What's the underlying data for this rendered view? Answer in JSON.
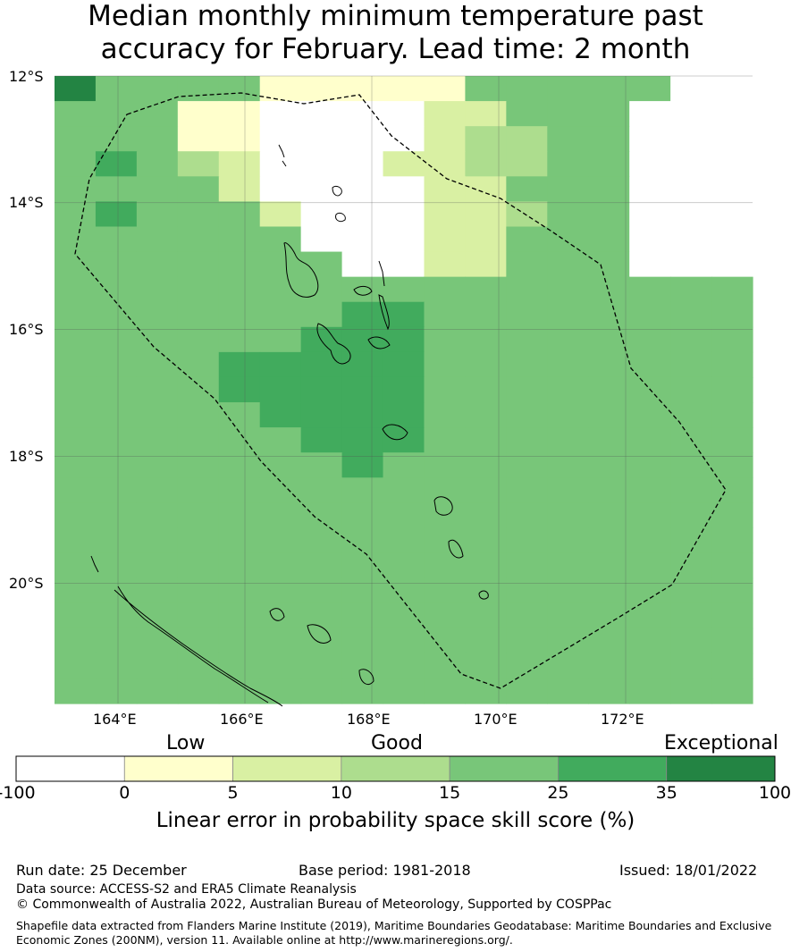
{
  "title": {
    "line1": "Median monthly minimum temperature past",
    "line2": "accuracy for February. Lead time: 2 month"
  },
  "map": {
    "lat_labels": [
      "12°S",
      "14°S",
      "16°S",
      "18°S",
      "20°S"
    ],
    "lon_labels": [
      "164°E",
      "166°E",
      "168°E",
      "170°E",
      "172°E"
    ],
    "lon_range": [
      163.0,
      174.0
    ],
    "lat_range": [
      -21.9,
      -12.0
    ],
    "boundary_style": "dashed",
    "grid": true,
    "skill_grid_rows": [
      "64444111114444400",
      "44411000022444000",
      "44411000023344000",
      "45432000223344000",
      "44442000022444000",
      "45444200022344000",
      "44444400022444000",
      "44444440022444000",
      "44444444444444444",
      "44444445544444444",
      "44444455544444444",
      "44445555544444444",
      "44445555544444444",
      "44444555544444444",
      "44444455544444444",
      "44444445444444444",
      "44444444444444444",
      "44444444444444444",
      "44444444444444444",
      "44444444444444444",
      "44444444444444444",
      "44444444444444444",
      "44444444444444444",
      "44444444444444444",
      "44444444444444444"
    ]
  },
  "colorbar": {
    "categories": [
      {
        "text": "Low"
      },
      {
        "text": "Good"
      },
      {
        "text": "Exceptional"
      }
    ],
    "bins": [
      {
        "color": "#ffffff"
      },
      {
        "color": "#ffffcc"
      },
      {
        "color": "#d9f0a3"
      },
      {
        "color": "#addd8e"
      },
      {
        "color": "#78c679"
      },
      {
        "color": "#41ab5d"
      },
      {
        "color": "#238443"
      }
    ],
    "ticks": [
      "-100",
      "0",
      "5",
      "10",
      "15",
      "25",
      "35",
      "100"
    ],
    "label": "Linear error in probability space skill score (%)"
  },
  "footer": {
    "run_date": "Run date: 25 December",
    "base_period": "Base period: 1981-2018",
    "issued": "Issued: 18/01/2022",
    "data_source": "Data source: ACCESS-S2 and ERA5 Climate Reanalysis",
    "copyright": "© Commonwealth of Australia 2022, Australian Bureau of Meteorology, Supported by COSPPac",
    "shapefile_line1": "Shapefile data extracted from Flanders Marine Institute (2019), Maritime Boundaries Geodatabase: Maritime Boundaries and Exclusive",
    "shapefile_line2": "Economic Zones (200NM), version 11. Available online at http://www.marineregions.org/."
  }
}
